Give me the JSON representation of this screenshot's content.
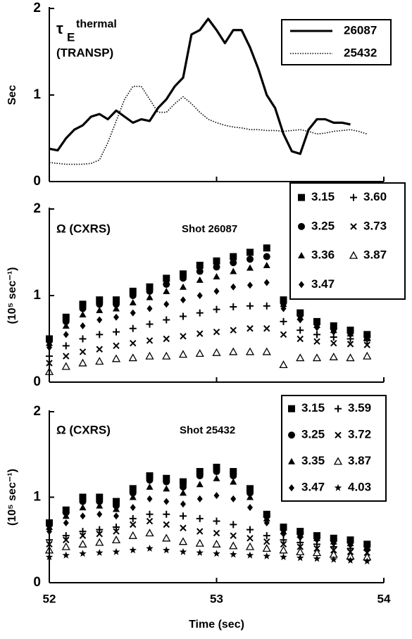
{
  "chart_data": [
    {
      "type": "line",
      "annotation": {
        "symbol": "τ",
        "subscript": "E",
        "superscript": "thermal",
        "note": "(TRANSP)"
      },
      "ylabel": "Sec",
      "x": [
        52.0,
        52.05,
        52.1,
        52.15,
        52.2,
        52.25,
        52.3,
        52.35,
        52.4,
        52.45,
        52.5,
        52.55,
        52.6,
        52.65,
        52.7,
        52.75,
        52.8,
        52.85,
        52.9,
        52.95,
        53.0,
        53.05,
        53.1,
        53.15,
        53.2,
        53.25,
        53.3,
        53.35,
        53.4,
        53.45,
        53.5,
        53.55,
        53.6,
        53.65,
        53.7,
        53.75,
        53.8,
        53.85,
        53.9
      ],
      "series": [
        {
          "name": "26087",
          "color": "#000000",
          "style": "solid",
          "values": [
            0.38,
            0.36,
            0.5,
            0.6,
            0.65,
            0.75,
            0.78,
            0.72,
            0.82,
            0.75,
            0.68,
            0.72,
            0.7,
            0.85,
            0.95,
            1.1,
            1.2,
            1.7,
            1.75,
            1.88,
            1.75,
            1.6,
            1.75,
            1.75,
            1.55,
            1.3,
            1.0,
            0.85,
            0.55,
            0.35,
            0.32,
            0.6,
            0.72,
            0.72,
            0.68,
            0.68,
            0.66,
            null,
            null
          ]
        },
        {
          "name": "25432",
          "color": "#000000",
          "style": "dotted",
          "values": [
            0.22,
            0.21,
            0.2,
            0.2,
            0.2,
            0.21,
            0.25,
            0.45,
            0.7,
            0.95,
            1.1,
            1.1,
            0.95,
            0.8,
            0.8,
            0.9,
            0.98,
            0.9,
            0.8,
            0.72,
            0.68,
            0.65,
            0.63,
            0.62,
            0.6,
            0.6,
            0.59,
            0.59,
            0.58,
            0.59,
            0.6,
            0.58,
            0.55,
            0.56,
            0.58,
            0.59,
            0.6,
            0.58,
            0.55
          ]
        }
      ],
      "xlim": [
        52,
        54
      ],
      "xticks": [
        52,
        53,
        54
      ],
      "ylim": [
        0,
        2
      ],
      "yticks": [
        0,
        1,
        2
      ]
    },
    {
      "type": "scatter",
      "annotation": "Ω (CXRS)",
      "subtitle": "Shot 26087",
      "ylabel": "(10⁵ sec⁻¹)",
      "x": [
        52.0,
        52.1,
        52.2,
        52.3,
        52.4,
        52.5,
        52.6,
        52.7,
        52.8,
        52.9,
        53.0,
        53.1,
        53.2,
        53.3,
        53.4,
        53.5,
        53.6,
        53.7,
        53.8,
        53.9
      ],
      "series": [
        {
          "name": "3.15",
          "marker": "square",
          "color": "#000000",
          "values": [
            0.5,
            0.75,
            0.9,
            0.95,
            0.95,
            1.05,
            1.1,
            1.2,
            1.25,
            1.35,
            1.4,
            1.45,
            1.5,
            1.55,
            0.95,
            0.8,
            0.7,
            0.65,
            0.6,
            0.55
          ]
        },
        {
          "name": "3.25",
          "marker": "circle",
          "color": "#000000",
          "values": [
            0.48,
            0.7,
            0.85,
            0.9,
            0.9,
            1.0,
            1.05,
            1.13,
            1.2,
            1.28,
            1.33,
            1.38,
            1.42,
            1.45,
            0.92,
            0.78,
            0.68,
            0.62,
            0.58,
            0.53
          ]
        },
        {
          "name": "3.36",
          "marker": "triangle",
          "color": "#000000",
          "values": [
            0.45,
            0.65,
            0.78,
            0.83,
            0.85,
            0.92,
            0.98,
            1.05,
            1.1,
            1.18,
            1.22,
            1.28,
            1.32,
            1.35,
            0.9,
            0.75,
            0.66,
            0.6,
            0.56,
            0.52
          ]
        },
        {
          "name": "3.47",
          "marker": "diamond",
          "color": "#000000",
          "values": [
            0.4,
            0.55,
            0.65,
            0.72,
            0.75,
            0.8,
            0.85,
            0.9,
            0.95,
            1.0,
            1.05,
            1.1,
            1.12,
            1.15,
            0.85,
            0.72,
            0.63,
            0.58,
            0.55,
            0.5
          ]
        },
        {
          "name": "3.60",
          "marker": "plus",
          "color": "#000000",
          "values": [
            0.3,
            0.42,
            0.5,
            0.55,
            0.58,
            0.62,
            0.67,
            0.72,
            0.76,
            0.8,
            0.84,
            0.87,
            0.88,
            0.88,
            0.7,
            0.6,
            0.55,
            0.52,
            0.5,
            0.48
          ]
        },
        {
          "name": "3.73",
          "marker": "cross",
          "color": "#000000",
          "values": [
            0.22,
            0.3,
            0.35,
            0.38,
            0.42,
            0.45,
            0.48,
            0.5,
            0.53,
            0.56,
            0.58,
            0.6,
            0.62,
            0.62,
            0.55,
            0.5,
            0.47,
            0.45,
            0.44,
            0.43
          ]
        },
        {
          "name": "3.87",
          "marker": "triangle-open",
          "color": "#000000",
          "values": [
            0.12,
            0.18,
            0.22,
            0.24,
            0.27,
            0.28,
            0.3,
            0.3,
            0.32,
            0.33,
            0.34,
            0.35,
            0.35,
            0.35,
            0.2,
            0.28,
            0.28,
            0.29,
            0.28,
            0.3
          ]
        }
      ],
      "xlim": [
        52,
        54
      ],
      "xticks": [
        52,
        53,
        54
      ],
      "ylim": [
        0,
        2
      ],
      "yticks": [
        0,
        1,
        2
      ]
    },
    {
      "type": "scatter",
      "annotation": "Ω (CXRS)",
      "subtitle": "Shot 25432",
      "ylabel": "(10⁵ sec⁻¹)",
      "xlabel": "Time (sec)",
      "x": [
        52.0,
        52.1,
        52.2,
        52.3,
        52.4,
        52.5,
        52.6,
        52.7,
        52.8,
        52.9,
        53.0,
        53.1,
        53.2,
        53.3,
        53.4,
        53.5,
        53.6,
        53.7,
        53.8,
        53.9
      ],
      "series": [
        {
          "name": "3.15",
          "marker": "square",
          "color": "#000000",
          "values": [
            0.7,
            0.85,
            1.0,
            1.0,
            0.95,
            1.1,
            1.25,
            1.22,
            1.18,
            1.3,
            1.35,
            1.3,
            1.1,
            0.8,
            0.65,
            0.6,
            0.55,
            0.52,
            0.5,
            0.45
          ]
        },
        {
          "name": "3.25",
          "marker": "circle",
          "color": "#000000",
          "values": [
            0.68,
            0.82,
            0.95,
            0.95,
            0.9,
            1.05,
            1.2,
            1.18,
            1.12,
            1.25,
            1.3,
            1.25,
            1.05,
            0.78,
            0.63,
            0.58,
            0.53,
            0.5,
            0.48,
            0.44
          ]
        },
        {
          "name": "3.35",
          "marker": "triangle",
          "color": "#000000",
          "values": [
            0.65,
            0.78,
            0.88,
            0.9,
            0.86,
            1.0,
            1.12,
            1.1,
            1.05,
            1.15,
            1.22,
            1.18,
            1.0,
            0.75,
            0.6,
            0.56,
            0.52,
            0.48,
            0.46,
            0.42
          ]
        },
        {
          "name": "3.47",
          "marker": "diamond",
          "color": "#000000",
          "values": [
            0.6,
            0.7,
            0.78,
            0.8,
            0.78,
            0.88,
            0.98,
            0.95,
            0.92,
            0.98,
            1.02,
            0.98,
            0.88,
            0.7,
            0.57,
            0.53,
            0.5,
            0.46,
            0.44,
            0.4
          ]
        },
        {
          "name": "3.59",
          "marker": "plus",
          "color": "#000000",
          "values": [
            0.5,
            0.55,
            0.6,
            0.62,
            0.65,
            0.75,
            0.8,
            0.8,
            0.78,
            0.75,
            0.72,
            0.68,
            0.62,
            0.55,
            0.5,
            0.47,
            0.45,
            0.42,
            0.4,
            0.38
          ]
        },
        {
          "name": "3.72",
          "marker": "cross",
          "color": "#000000",
          "values": [
            0.45,
            0.5,
            0.55,
            0.57,
            0.6,
            0.68,
            0.72,
            0.68,
            0.64,
            0.6,
            0.58,
            0.55,
            0.52,
            0.48,
            0.45,
            0.42,
            0.4,
            0.38,
            0.36,
            0.35
          ]
        },
        {
          "name": "3.87",
          "marker": "triangle-open",
          "color": "#000000",
          "values": [
            0.38,
            0.42,
            0.45,
            0.47,
            0.5,
            0.55,
            0.58,
            0.52,
            0.48,
            0.46,
            0.45,
            0.43,
            0.42,
            0.4,
            0.38,
            0.36,
            0.35,
            0.33,
            0.31,
            0.3
          ]
        },
        {
          "name": "4.03",
          "marker": "star",
          "color": "#000000",
          "values": [
            0.3,
            0.32,
            0.34,
            0.35,
            0.36,
            0.38,
            0.4,
            0.38,
            0.36,
            0.35,
            0.34,
            0.33,
            0.32,
            0.31,
            0.3,
            0.29,
            0.28,
            0.27,
            0.26,
            0.25
          ]
        }
      ],
      "xlim": [
        52,
        54
      ],
      "xticks": [
        52,
        53,
        54
      ],
      "ylim": [
        0,
        2
      ],
      "yticks": [
        0,
        1,
        2
      ]
    }
  ]
}
